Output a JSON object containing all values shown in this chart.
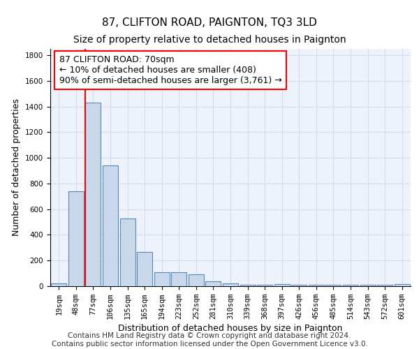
{
  "title": "87, CLIFTON ROAD, PAIGNTON, TQ3 3LD",
  "subtitle": "Size of property relative to detached houses in Paignton",
  "xlabel": "Distribution of detached houses by size in Paignton",
  "ylabel": "Number of detached properties",
  "bin_labels": [
    "19sqm",
    "48sqm",
    "77sqm",
    "106sqm",
    "135sqm",
    "165sqm",
    "194sqm",
    "223sqm",
    "252sqm",
    "281sqm",
    "310sqm",
    "339sqm",
    "368sqm",
    "397sqm",
    "426sqm",
    "456sqm",
    "485sqm",
    "514sqm",
    "543sqm",
    "572sqm",
    "601sqm"
  ],
  "bar_heights": [
    20,
    740,
    1430,
    940,
    530,
    265,
    110,
    110,
    95,
    40,
    20,
    10,
    10,
    15,
    10,
    10,
    10,
    10,
    10,
    10,
    15
  ],
  "bar_color": "#c8d8ea",
  "bar_edge_color": "#5588bb",
  "property_line_bin_index": 2,
  "annotation_line1": "87 CLIFTON ROAD: 70sqm",
  "annotation_line2": "← 10% of detached houses are smaller (408)",
  "annotation_line3": "90% of semi-detached houses are larger (3,761) →",
  "annotation_box_color": "white",
  "annotation_box_edge_color": "red",
  "red_line_color": "red",
  "ylim": [
    0,
    1850
  ],
  "yticks": [
    0,
    200,
    400,
    600,
    800,
    1000,
    1200,
    1400,
    1600,
    1800
  ],
  "grid_color": "#d4daf0",
  "background_color": "#eef2fb",
  "footer_text": "Contains HM Land Registry data © Crown copyright and database right 2024.\nContains public sector information licensed under the Open Government Licence v3.0.",
  "title_fontsize": 11,
  "subtitle_fontsize": 10,
  "xlabel_fontsize": 9,
  "ylabel_fontsize": 9,
  "tick_fontsize": 7.5,
  "annotation_fontsize": 9,
  "footer_fontsize": 7.5
}
